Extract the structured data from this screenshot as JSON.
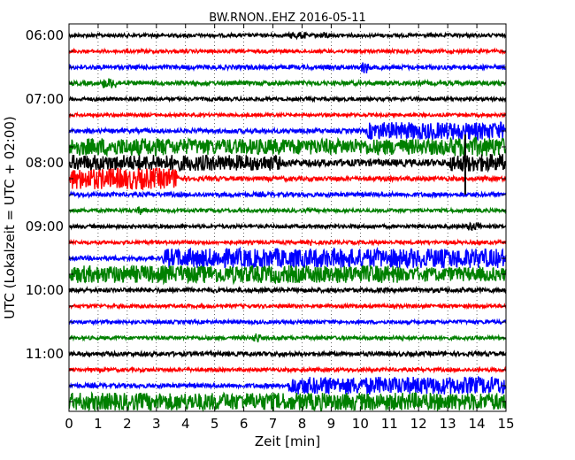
{
  "chart_data": {
    "type": "line",
    "title": "BW.RNON..EHZ 2016-05-11",
    "xlabel": "Zeit  [min]",
    "ylabel": "UTC (Lokalzeit = UTC + 02:00)",
    "xlim": [
      0,
      15
    ],
    "x_ticks": [
      "0",
      "1",
      "2",
      "3",
      "4",
      "5",
      "6",
      "7",
      "8",
      "9",
      "10",
      "11",
      "12",
      "13",
      "14",
      "15"
    ],
    "y_tick_labels": [
      "06:00",
      "07:00",
      "08:00",
      "09:00",
      "10:00",
      "11:00"
    ],
    "grid": true,
    "colors": [
      "#000000",
      "#ff0000",
      "#0000ff",
      "#008000"
    ],
    "traces": [
      {
        "time": "06:00",
        "color": "#000000",
        "noise": 2,
        "bursts": [
          [
            7.5,
            8.2,
            4
          ],
          [
            8.6,
            9.0,
            4
          ]
        ]
      },
      {
        "time": "06:15",
        "color": "#ff0000",
        "noise": 2,
        "bursts": []
      },
      {
        "time": "06:30",
        "color": "#0000ff",
        "noise": 2.5,
        "bursts": [
          [
            10.0,
            10.3,
            8
          ]
        ]
      },
      {
        "time": "06:45",
        "color": "#008000",
        "noise": 2.5,
        "bursts": [
          [
            1.1,
            1.7,
            6
          ]
        ]
      },
      {
        "time": "07:00",
        "color": "#000000",
        "noise": 2,
        "bursts": []
      },
      {
        "time": "07:15",
        "color": "#ff0000",
        "noise": 1.8,
        "bursts": [
          [
            8.0,
            8.1,
            6
          ]
        ]
      },
      {
        "time": "07:30",
        "color": "#0000ff",
        "noise": 2.5,
        "bursts": [
          [
            10.2,
            15.0,
            10
          ]
        ]
      },
      {
        "time": "07:45",
        "color": "#008000",
        "noise": 9,
        "bursts": [
          [
            0,
            3.5,
            10
          ],
          [
            13.0,
            15.0,
            11
          ]
        ]
      },
      {
        "time": "08:00",
        "color": "#000000",
        "noise": 4,
        "bursts": [
          [
            0,
            7.3,
            9
          ],
          [
            13.0,
            15.0,
            10
          ]
        ]
      },
      {
        "time": "08:15",
        "color": "#ff0000",
        "noise": 2.5,
        "bursts": [
          [
            0,
            3.8,
            12
          ]
        ]
      },
      {
        "time": "08:30",
        "color": "#0000ff",
        "noise": 2.5,
        "bursts": []
      },
      {
        "time": "08:45",
        "color": "#008000",
        "noise": 2,
        "bursts": [
          [
            2.3,
            2.6,
            5
          ]
        ]
      },
      {
        "time": "09:00",
        "color": "#000000",
        "noise": 2,
        "bursts": [
          [
            13.6,
            14.2,
            5
          ]
        ]
      },
      {
        "time": "09:15",
        "color": "#ff0000",
        "noise": 2,
        "bursts": [
          [
            8.2,
            8.4,
            4
          ]
        ]
      },
      {
        "time": "09:30",
        "color": "#0000ff",
        "noise": 2.5,
        "bursts": [
          [
            3.2,
            15.0,
            11
          ]
        ]
      },
      {
        "time": "09:45",
        "color": "#008000",
        "noise": 8,
        "bursts": [
          [
            0,
            11.4,
            10
          ]
        ]
      },
      {
        "time": "10:00",
        "color": "#000000",
        "noise": 2.5,
        "bursts": []
      },
      {
        "time": "10:15",
        "color": "#ff0000",
        "noise": 2,
        "bursts": []
      },
      {
        "time": "10:30",
        "color": "#0000ff",
        "noise": 2,
        "bursts": [
          [
            14.3,
            14.4,
            5
          ]
        ]
      },
      {
        "time": "10:45",
        "color": "#008000",
        "noise": 2,
        "bursts": [
          [
            6.3,
            6.6,
            6
          ],
          [
            11.4,
            11.5,
            5
          ]
        ]
      },
      {
        "time": "11:00",
        "color": "#000000",
        "noise": 2.5,
        "bursts": []
      },
      {
        "time": "11:15",
        "color": "#ff0000",
        "noise": 2,
        "bursts": []
      },
      {
        "time": "11:30",
        "color": "#0000ff",
        "noise": 2.5,
        "bursts": [
          [
            7.5,
            15.0,
            10
          ]
        ]
      },
      {
        "time": "11:45",
        "color": "#008000",
        "noise": 9,
        "bursts": [
          [
            0,
            15.0,
            10
          ]
        ]
      }
    ],
    "spikes": [
      {
        "trace_time": "08:00",
        "x": 13.6,
        "size": 4.0
      }
    ]
  }
}
